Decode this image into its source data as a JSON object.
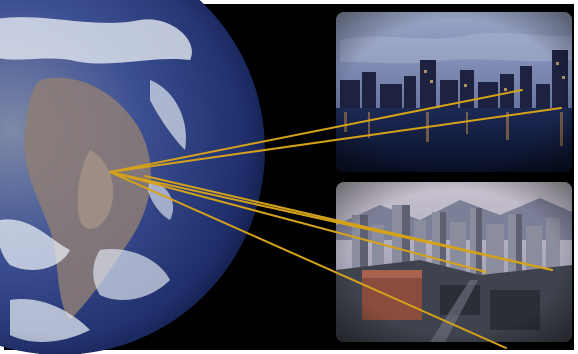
{
  "scene": {
    "background_color": "#000000",
    "frame_color": "#ffffff",
    "line_color": "#d4a21a",
    "earth": {
      "ocean_color": "#2b3f86",
      "land_color": "#8a7a72",
      "cloud_color": "#e6ecf3"
    },
    "panels": [
      {
        "name": "waterfront-skyline-photo",
        "sky_color": "#6f7fa4",
        "water_color": "#101b38"
      },
      {
        "name": "aerial-downtown-photo",
        "sky_color": "#a8a6b8",
        "ground_color": "#4b4f58"
      }
    ]
  }
}
